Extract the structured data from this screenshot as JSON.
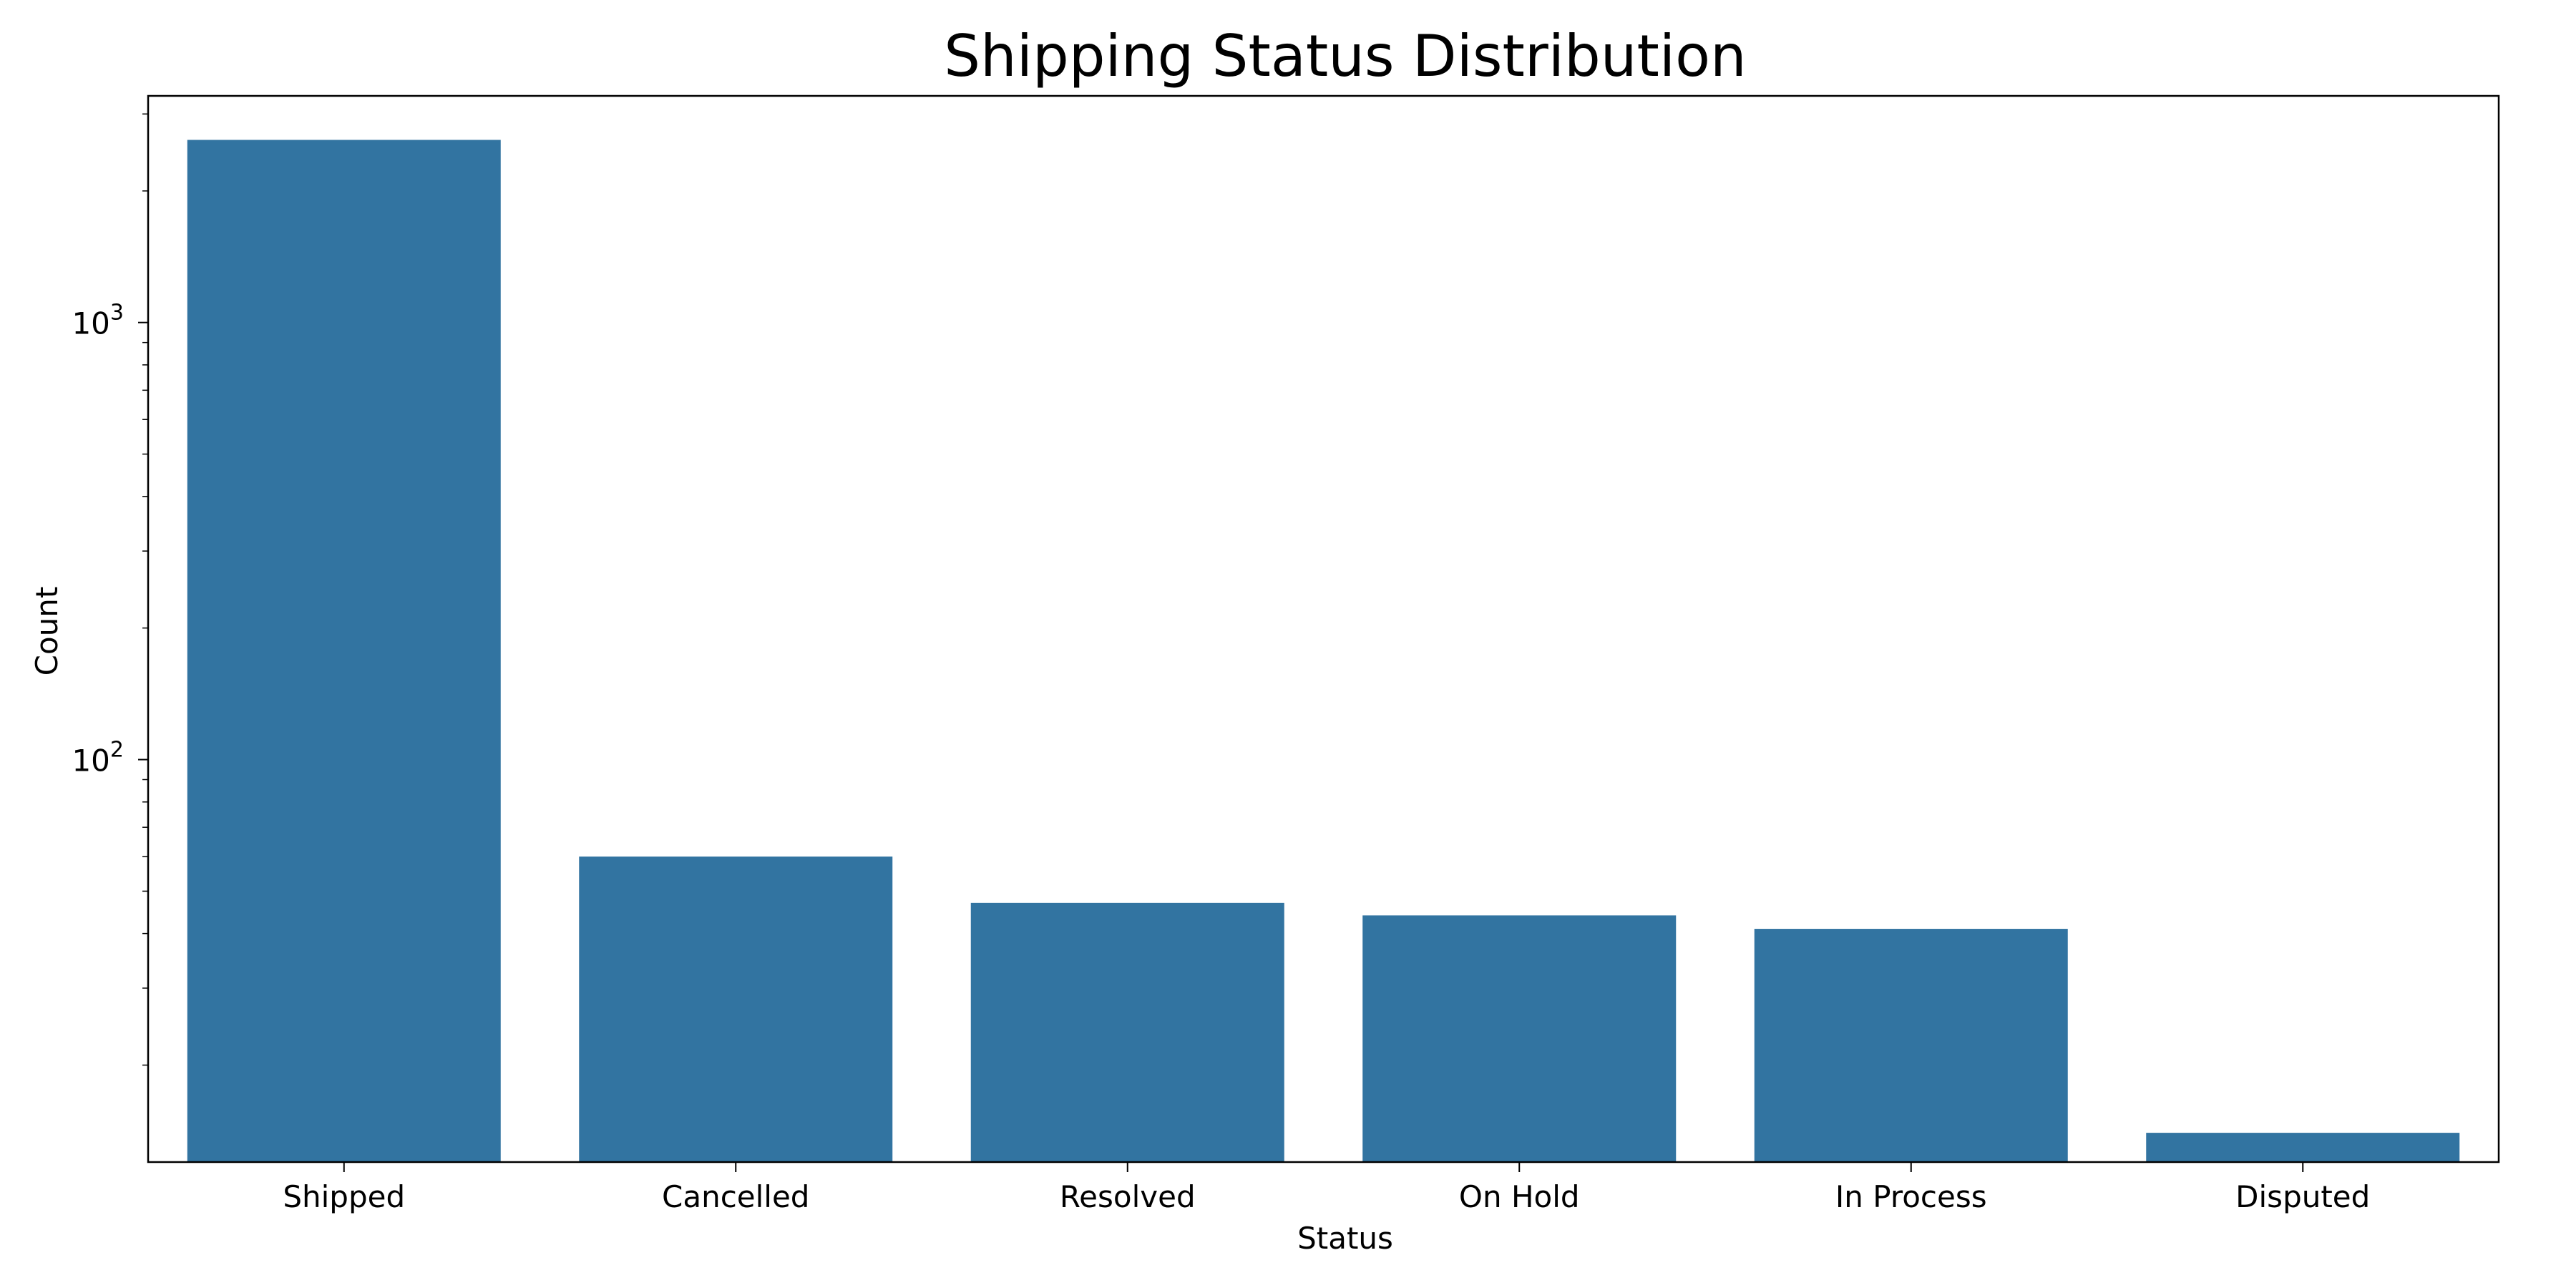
{
  "chart_data": {
    "type": "bar",
    "title": "Shipping Status Distribution",
    "xlabel": "Status",
    "ylabel": "Count",
    "yscale": "log",
    "ylim": [
      12,
      3300
    ],
    "categories": [
      "Shipped",
      "Cancelled",
      "Resolved",
      "On Hold",
      "In Process",
      "Disputed"
    ],
    "values": [
      2617,
      60,
      47,
      44,
      41,
      14
    ],
    "y_major_ticks": [
      {
        "value": 100,
        "base": "10",
        "exp": "2"
      },
      {
        "value": 1000,
        "base": "10",
        "exp": "3"
      }
    ],
    "bar_color": "#3274a1",
    "grid": false,
    "legend": "none"
  }
}
